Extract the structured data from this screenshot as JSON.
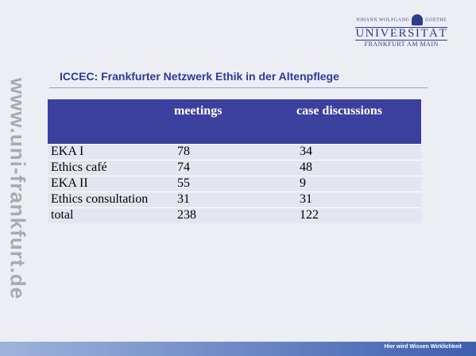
{
  "logo": {
    "line1": "JOHANN WOLFGANG",
    "line1b": "GOETHE",
    "line2": "UNIVERSITÄT",
    "line3": "FRANKFURT AM MAIN"
  },
  "side_text": "www.uni-frankfurt.de",
  "title": "ICCEC: Frankfurter Netzwerk Ethik in der Altenpflege",
  "table": {
    "header": [
      "",
      "meetings",
      "case discussions"
    ],
    "rows": [
      [
        "EKA I",
        78,
        34
      ],
      [
        "Ethics café",
        74,
        48
      ],
      [
        "EKA II",
        55,
        9
      ],
      [
        "Ethics consultation",
        31,
        31
      ],
      [
        "total",
        238,
        122
      ]
    ]
  },
  "footer": "Hier wird Wissen Wirklichkeit"
}
